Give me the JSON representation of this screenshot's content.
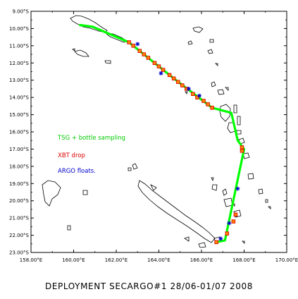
{
  "map": {
    "lon_range": [
      158,
      170
    ],
    "lat_range": [
      9,
      23
    ],
    "lat_labels": [
      "9.00°S",
      "10.00°S",
      "11.00°S",
      "12.00°S",
      "13.00°S",
      "14.00°S",
      "15.00°S",
      "16.00°S",
      "17.00°S",
      "18.00°S",
      "19.00°S",
      "20.00°S",
      "21.00°S",
      "22.00°S",
      "23.00°S"
    ],
    "lon_labels": [
      "158.00°E",
      "160.00°E",
      "162.00°E",
      "164.00°E",
      "166.00°E",
      "168.00°E",
      "170.00°E"
    ],
    "coastline_color": "#000000"
  },
  "legend": {
    "tsg": {
      "label": "TSG + bottle sampling",
      "color": "#00ff00"
    },
    "xbt": {
      "label": "XBT drop",
      "color": "#dd0000"
    },
    "argo": {
      "label": "ARGO floats.",
      "color": "#0000cc"
    }
  },
  "track": {
    "points": [
      [
        160.3,
        9.8
      ],
      [
        160.9,
        9.9
      ],
      [
        162.6,
        10.8
      ],
      [
        164.7,
        12.9
      ],
      [
        166.5,
        14.6
      ],
      [
        167.4,
        14.9
      ],
      [
        167.7,
        16.5
      ],
      [
        168.0,
        17.0
      ],
      [
        167.1,
        22.3
      ],
      [
        166.7,
        22.4
      ]
    ],
    "xbt_points": [
      [
        162.6,
        10.8
      ],
      [
        162.8,
        11.0
      ],
      [
        163.1,
        11.3
      ],
      [
        163.3,
        11.5
      ],
      [
        163.5,
        11.7
      ],
      [
        163.8,
        12.0
      ],
      [
        164.0,
        12.2
      ],
      [
        164.2,
        12.4
      ],
      [
        164.5,
        12.7
      ],
      [
        164.7,
        12.9
      ],
      [
        164.9,
        13.1
      ],
      [
        165.1,
        13.3
      ],
      [
        165.3,
        13.5
      ],
      [
        165.6,
        13.8
      ],
      [
        165.8,
        14.0
      ],
      [
        166.1,
        14.2
      ],
      [
        166.3,
        14.4
      ],
      [
        166.5,
        14.6
      ],
      [
        167.9,
        16.9
      ],
      [
        167.9,
        17.1
      ],
      [
        167.6,
        20.8
      ],
      [
        167.5,
        21.2
      ],
      [
        167.2,
        21.9
      ],
      [
        166.7,
        22.4
      ]
    ],
    "argo_points": [
      [
        163.0,
        10.9
      ],
      [
        164.1,
        12.6
      ],
      [
        165.4,
        13.5
      ],
      [
        165.9,
        13.9
      ],
      [
        167.7,
        19.3
      ],
      [
        167.3,
        21.3
      ],
      [
        166.9,
        22.2
      ]
    ]
  },
  "caption": "DEPLOYMENT SECARGO#1 28/06-01/07 2008"
}
